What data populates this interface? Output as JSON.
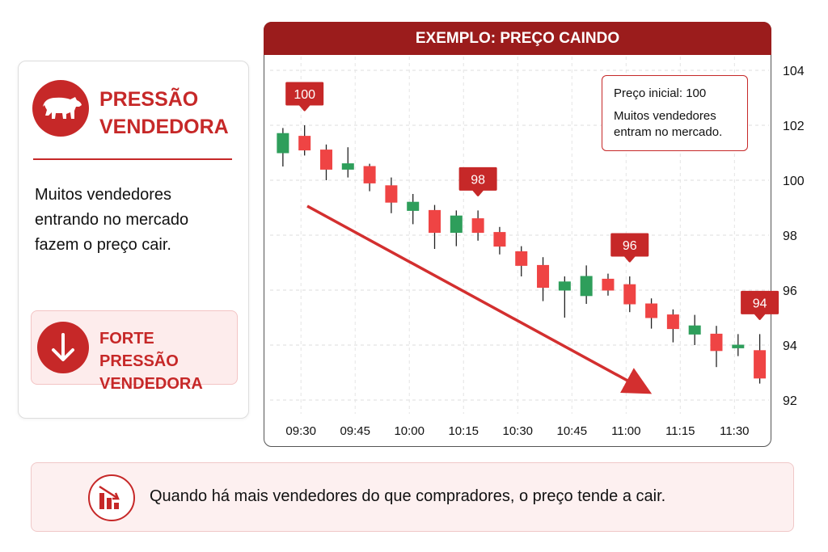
{
  "side_panel": {
    "title": "PRESSÃO VENDEDORA",
    "text": "Muitos vendedores entrando no mercado fazem o preço cair.",
    "badge": "FORTE PRESSÃO VENDEDORA"
  },
  "chart_data": {
    "type": "candlestick",
    "title": "EXEMPLO: PREÇO CAINDO",
    "note": [
      "Preço inicial: 100",
      "Muitos vendedores entram no mercado."
    ],
    "x": [
      565,
      571,
      577,
      583,
      589,
      595,
      601,
      607,
      613,
      619,
      625,
      631,
      637,
      643,
      649,
      655,
      661,
      667,
      673,
      679,
      685,
      691,
      697
    ],
    "open": [
      101.0,
      101.6,
      101.1,
      100.4,
      100.5,
      99.8,
      98.9,
      98.9,
      98.1,
      98.6,
      98.1,
      97.4,
      96.9,
      96.0,
      95.8,
      96.4,
      96.2,
      95.5,
      95.1,
      94.4,
      94.4,
      93.9,
      93.8
    ],
    "high": [
      101.9,
      102.0,
      101.3,
      101.2,
      100.6,
      100.1,
      99.5,
      99.1,
      98.9,
      98.9,
      98.3,
      97.6,
      97.2,
      96.5,
      96.9,
      96.6,
      96.5,
      95.7,
      95.3,
      95.1,
      94.7,
      94.4,
      94.4
    ],
    "low": [
      100.5,
      100.9,
      100.0,
      100.1,
      99.6,
      98.8,
      98.4,
      97.5,
      97.6,
      97.8,
      97.3,
      96.5,
      95.6,
      95.0,
      95.5,
      95.8,
      95.2,
      94.6,
      94.1,
      94.0,
      93.2,
      93.6,
      92.6
    ],
    "close": [
      101.7,
      101.1,
      100.4,
      100.6,
      99.9,
      99.2,
      99.2,
      98.1,
      98.7,
      98.1,
      97.6,
      96.9,
      96.1,
      96.3,
      96.5,
      96.0,
      95.5,
      95.0,
      94.6,
      94.7,
      93.8,
      94.0,
      92.8
    ],
    "up_color": "#2e9e5b",
    "down_color": "#ef4444",
    "xlim": [
      561,
      700
    ],
    "xticks": [
      {
        "value": 570,
        "label": "09:30"
      },
      {
        "value": 585,
        "label": "09:45"
      },
      {
        "value": 600,
        "label": "10:00"
      },
      {
        "value": 615,
        "label": "10:15"
      },
      {
        "value": 630,
        "label": "10:30"
      },
      {
        "value": 645,
        "label": "10:45"
      },
      {
        "value": 660,
        "label": "11:00"
      },
      {
        "value": 675,
        "label": "11:15"
      },
      {
        "value": 690,
        "label": "11:30"
      }
    ],
    "ylim": [
      91.5,
      104.5
    ],
    "yticks": [
      92,
      94,
      96,
      98,
      100,
      102,
      104
    ],
    "grid": true,
    "annotations": [
      {
        "x": 571,
        "value": 100
      },
      {
        "x": 619,
        "value": 98
      },
      {
        "x": 661,
        "value": 96
      },
      {
        "x": 697,
        "value": 94
      }
    ]
  },
  "footer": {
    "text": "Quando há mais vendedores do que compradores, o preço tende a cair."
  }
}
